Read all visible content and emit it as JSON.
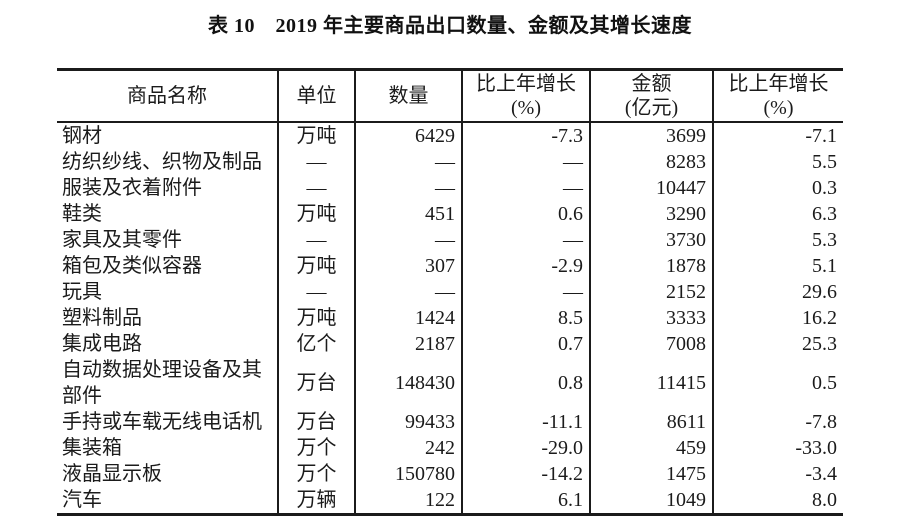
{
  "title": "表 10　2019 年主要商品出口数量、金额及其增长速度",
  "table": {
    "headers": [
      {
        "label": "商品名称",
        "sub": ""
      },
      {
        "label": "单位",
        "sub": ""
      },
      {
        "label": "数量",
        "sub": ""
      },
      {
        "label": "比上年增长",
        "sub": "(%)"
      },
      {
        "label": "金额",
        "sub": "(亿元)"
      },
      {
        "label": "比上年增长",
        "sub": "(%)"
      }
    ],
    "col_keys": [
      "commodity-name",
      "unit",
      "quantity",
      "quantity-growth",
      "value",
      "value-growth"
    ],
    "rows": [
      [
        "钢材",
        "万吨",
        "6429",
        "-7.3",
        "3699",
        "-7.1"
      ],
      [
        "纺织纱线、织物及制品",
        "—",
        "—",
        "—",
        "8283",
        "5.5"
      ],
      [
        "服装及衣着附件",
        "—",
        "—",
        "—",
        "10447",
        "0.3"
      ],
      [
        "鞋类",
        "万吨",
        "451",
        "0.6",
        "3290",
        "6.3"
      ],
      [
        "家具及其零件",
        "—",
        "—",
        "—",
        "3730",
        "5.3"
      ],
      [
        "箱包及类似容器",
        "万吨",
        "307",
        "-2.9",
        "1878",
        "5.1"
      ],
      [
        "玩具",
        "—",
        "—",
        "—",
        "2152",
        "29.6"
      ],
      [
        "塑料制品",
        "万吨",
        "1424",
        "8.5",
        "3333",
        "16.2"
      ],
      [
        "集成电路",
        "亿个",
        "2187",
        "0.7",
        "7008",
        "25.3"
      ],
      [
        "自动数据处理设备及其\n部件",
        "万台",
        "148430",
        "0.8",
        "11415",
        "0.5"
      ],
      [
        "手持或车载无线电话机",
        "万台",
        "99433",
        "-11.1",
        "8611",
        "-7.8"
      ],
      [
        "集装箱",
        "万个",
        "242",
        "-29.0",
        "459",
        "-33.0"
      ],
      [
        "液晶显示板",
        "万个",
        "150780",
        "-14.2",
        "1475",
        "-3.4"
      ],
      [
        "汽车",
        "万辆",
        "122",
        "6.1",
        "1049",
        "8.0"
      ]
    ]
  },
  "chart_data": {
    "type": "table",
    "title": "表10 2019年主要商品出口数量、金额及其增长速度",
    "columns": [
      "商品名称",
      "单位",
      "数量",
      "比上年增长(%)",
      "金额(亿元)",
      "比上年增长(%)"
    ],
    "rows": [
      [
        "钢材",
        "万吨",
        6429,
        -7.3,
        3699,
        -7.1
      ],
      [
        "纺织纱线、织物及制品",
        null,
        null,
        null,
        8283,
        5.5
      ],
      [
        "服装及衣着附件",
        null,
        null,
        null,
        10447,
        0.3
      ],
      [
        "鞋类",
        "万吨",
        451,
        0.6,
        3290,
        6.3
      ],
      [
        "家具及其零件",
        null,
        null,
        null,
        3730,
        5.3
      ],
      [
        "箱包及类似容器",
        "万吨",
        307,
        -2.9,
        1878,
        5.1
      ],
      [
        "玩具",
        null,
        null,
        null,
        2152,
        29.6
      ],
      [
        "塑料制品",
        "万吨",
        1424,
        8.5,
        3333,
        16.2
      ],
      [
        "集成电路",
        "亿个",
        2187,
        0.7,
        7008,
        25.3
      ],
      [
        "自动数据处理设备及其部件",
        "万台",
        148430,
        0.8,
        11415,
        0.5
      ],
      [
        "手持或车载无线电话机",
        "万台",
        99433,
        -11.1,
        8611,
        -7.8
      ],
      [
        "集装箱",
        "万个",
        242,
        -29.0,
        459,
        -33.0
      ],
      [
        "液晶显示板",
        "万个",
        150780,
        -14.2,
        1475,
        -3.4
      ],
      [
        "汽车",
        "万辆",
        122,
        6.1,
        1049,
        8.0
      ]
    ]
  }
}
